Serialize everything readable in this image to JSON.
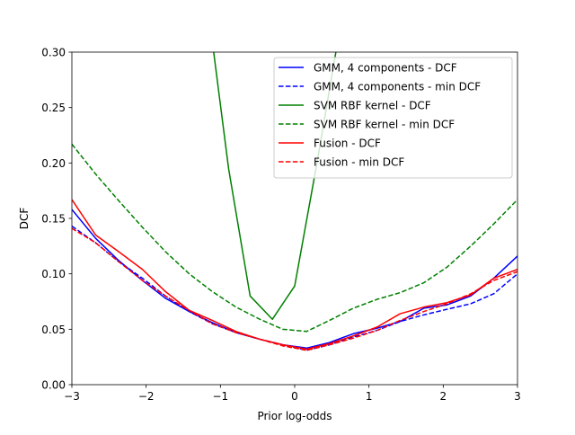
{
  "chart_data": {
    "type": "line",
    "title": "",
    "xlabel": "Prior log-odds",
    "ylabel": "DCF",
    "xlim": [
      -3,
      3
    ],
    "ylim": [
      0,
      0.3
    ],
    "xticks": [
      -3,
      -2,
      -1,
      0,
      1,
      2,
      3
    ],
    "xtick_labels": [
      "−3",
      "−2",
      "−1",
      "0",
      "1",
      "2",
      "3"
    ],
    "yticks": [
      0,
      0.05,
      0.1,
      0.15,
      0.2,
      0.25,
      0.3
    ],
    "ytick_labels": [
      "0.00",
      "0.05",
      "0.10",
      "0.15",
      "0.20",
      "0.25",
      "0.30"
    ],
    "grid": false,
    "legend_position": "top-right",
    "series": [
      {
        "name": "GMM, 4 components - DCF",
        "color": "#0000ff",
        "style": "solid",
        "x": [
          -3,
          -2.68,
          -2.37,
          -2.05,
          -1.74,
          -1.42,
          -1.11,
          -0.79,
          -0.47,
          -0.16,
          0.16,
          0.47,
          0.79,
          1.11,
          1.42,
          1.74,
          2.05,
          2.37,
          2.68,
          3
        ],
        "y": [
          0.158,
          0.132,
          0.112,
          0.094,
          0.078,
          0.066,
          0.056,
          0.047,
          0.041,
          0.036,
          0.033,
          0.038,
          0.046,
          0.051,
          0.057,
          0.069,
          0.072,
          0.08,
          0.096,
          0.116
        ]
      },
      {
        "name": "GMM, 4 components - min DCF",
        "color": "#0000ff",
        "style": "dashed",
        "x": [
          -3,
          -2.68,
          -2.37,
          -2.05,
          -1.74,
          -1.42,
          -1.11,
          -0.79,
          -0.47,
          -0.16,
          0.16,
          0.47,
          0.79,
          1.11,
          1.42,
          1.74,
          2.05,
          2.37,
          2.68,
          3
        ],
        "y": [
          0.143,
          0.128,
          0.111,
          0.096,
          0.08,
          0.066,
          0.055,
          0.047,
          0.041,
          0.036,
          0.031,
          0.036,
          0.043,
          0.049,
          0.057,
          0.063,
          0.068,
          0.073,
          0.082,
          0.1
        ]
      },
      {
        "name": "SVM RBF kernel - DCF",
        "color": "#008000",
        "style": "solid",
        "x": [
          -1.11,
          -0.89,
          -0.6,
          -0.3,
          0,
          0.3,
          0.58
        ],
        "y": [
          0.31,
          0.195,
          0.08,
          0.059,
          0.089,
          0.2,
          0.31
        ]
      },
      {
        "name": "SVM RBF kernel - min DCF",
        "color": "#008000",
        "style": "dashed",
        "x": [
          -3,
          -2.68,
          -2.37,
          -2.05,
          -1.74,
          -1.42,
          -1.11,
          -0.79,
          -0.47,
          -0.16,
          0.16,
          0.47,
          0.79,
          1.11,
          1.42,
          1.74,
          2.05,
          2.37,
          2.68,
          3
        ],
        "y": [
          0.217,
          0.19,
          0.166,
          0.142,
          0.12,
          0.1,
          0.084,
          0.07,
          0.059,
          0.05,
          0.048,
          0.058,
          0.069,
          0.077,
          0.083,
          0.092,
          0.106,
          0.125,
          0.145,
          0.167
        ]
      },
      {
        "name": "Fusion - DCF",
        "color": "#ff0000",
        "style": "solid",
        "x": [
          -3,
          -2.68,
          -2.37,
          -2.05,
          -1.74,
          -1.42,
          -1.11,
          -0.79,
          -0.47,
          -0.16,
          0.16,
          0.47,
          0.79,
          1.11,
          1.42,
          1.74,
          2.05,
          2.37,
          2.68,
          3
        ],
        "y": [
          0.167,
          0.135,
          0.12,
          0.104,
          0.084,
          0.067,
          0.058,
          0.048,
          0.041,
          0.036,
          0.032,
          0.037,
          0.044,
          0.052,
          0.064,
          0.07,
          0.074,
          0.081,
          0.096,
          0.104
        ]
      },
      {
        "name": "Fusion - min DCF",
        "color": "#ff0000",
        "style": "dashed",
        "x": [
          -3,
          -2.68,
          -2.37,
          -2.05,
          -1.74,
          -1.42,
          -1.11,
          -0.79,
          -0.47,
          -0.16,
          0.16,
          0.47,
          0.79,
          1.11,
          1.42,
          1.74,
          2.05,
          2.37,
          2.68,
          3
        ],
        "y": [
          0.141,
          0.128,
          0.111,
          0.094,
          0.08,
          0.067,
          0.055,
          0.047,
          0.041,
          0.035,
          0.031,
          0.036,
          0.042,
          0.049,
          0.058,
          0.066,
          0.073,
          0.082,
          0.094,
          0.102
        ]
      }
    ]
  }
}
